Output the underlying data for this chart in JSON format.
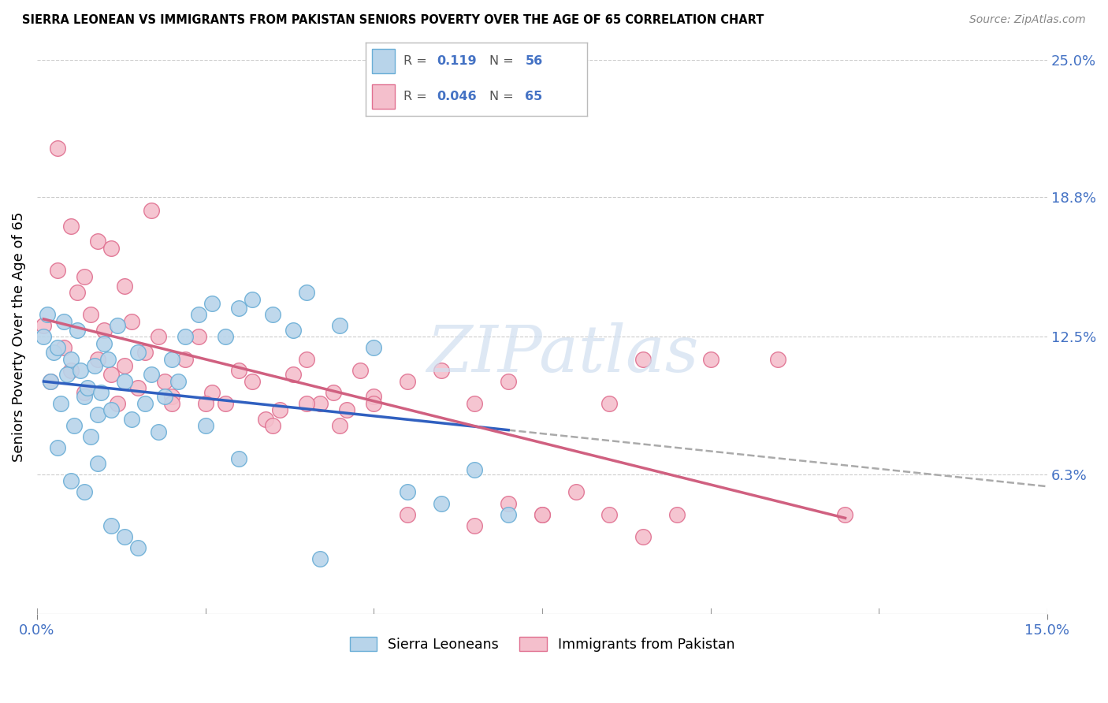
{
  "title": "SIERRA LEONEAN VS IMMIGRANTS FROM PAKISTAN SENIORS POVERTY OVER THE AGE OF 65 CORRELATION CHART",
  "source": "Source: ZipAtlas.com",
  "ylabel": "Seniors Poverty Over the Age of 65",
  "xlim": [
    0.0,
    15.0
  ],
  "ylim": [
    0.0,
    25.0
  ],
  "x_tick_labels": [
    "0.0%",
    "15.0%"
  ],
  "y_ticks_right": [
    6.3,
    12.5,
    18.8,
    25.0
  ],
  "y_tick_labels_right": [
    "6.3%",
    "12.5%",
    "18.8%",
    "25.0%"
  ],
  "series1_label": "Sierra Leoneans",
  "series1_color": "#b8d4ea",
  "series1_edge_color": "#6aaed6",
  "series1_R": "0.119",
  "series1_N": "56",
  "series2_label": "Immigrants from Pakistan",
  "series2_color": "#f4bfcc",
  "series2_edge_color": "#e07090",
  "series2_R": "0.046",
  "series2_N": "65",
  "trendline1_color": "#3060c0",
  "trendline2_color": "#d06080",
  "dashed_color": "#aaaaaa",
  "background_color": "#ffffff",
  "grid_color": "#cccccc",
  "series1_x": [
    0.1,
    0.15,
    0.2,
    0.25,
    0.3,
    0.35,
    0.4,
    0.45,
    0.5,
    0.55,
    0.6,
    0.65,
    0.7,
    0.75,
    0.8,
    0.85,
    0.9,
    0.95,
    1.0,
    1.05,
    1.1,
    1.2,
    1.3,
    1.4,
    1.5,
    1.6,
    1.7,
    1.8,
    1.9,
    2.0,
    2.1,
    2.2,
    2.4,
    2.6,
    2.8,
    3.0,
    3.2,
    3.5,
    3.8,
    4.0,
    4.5,
    5.0,
    5.5,
    6.0,
    6.5,
    7.0,
    0.3,
    0.5,
    0.7,
    0.9,
    1.1,
    1.3,
    1.5,
    2.5,
    3.0,
    4.2
  ],
  "series1_y": [
    12.5,
    13.5,
    10.5,
    11.8,
    12.0,
    9.5,
    13.2,
    10.8,
    11.5,
    8.5,
    12.8,
    11.0,
    9.8,
    10.2,
    8.0,
    11.2,
    9.0,
    10.0,
    12.2,
    11.5,
    9.2,
    13.0,
    10.5,
    8.8,
    11.8,
    9.5,
    10.8,
    8.2,
    9.8,
    11.5,
    10.5,
    12.5,
    13.5,
    14.0,
    12.5,
    13.8,
    14.2,
    13.5,
    12.8,
    14.5,
    13.0,
    12.0,
    5.5,
    5.0,
    6.5,
    4.5,
    7.5,
    6.0,
    5.5,
    6.8,
    4.0,
    3.5,
    3.0,
    8.5,
    7.0,
    2.5
  ],
  "series2_x": [
    0.1,
    0.2,
    0.3,
    0.4,
    0.5,
    0.6,
    0.7,
    0.8,
    0.9,
    1.0,
    1.1,
    1.2,
    1.3,
    1.4,
    1.5,
    1.6,
    1.7,
    1.8,
    1.9,
    2.0,
    2.2,
    2.4,
    2.6,
    2.8,
    3.0,
    3.2,
    3.4,
    3.6,
    3.8,
    4.0,
    4.2,
    4.4,
    4.6,
    4.8,
    5.0,
    5.5,
    6.0,
    6.5,
    7.0,
    7.5,
    8.0,
    8.5,
    9.0,
    9.5,
    10.0,
    0.3,
    0.5,
    0.7,
    0.9,
    1.1,
    1.3,
    2.0,
    2.5,
    3.5,
    4.5,
    5.5,
    6.5,
    7.5,
    9.0,
    11.0,
    12.0,
    7.0,
    8.5,
    5.0,
    4.0
  ],
  "series2_y": [
    13.0,
    10.5,
    15.5,
    12.0,
    11.0,
    14.5,
    10.0,
    13.5,
    11.5,
    12.8,
    10.8,
    9.5,
    11.2,
    13.2,
    10.2,
    11.8,
    18.2,
    12.5,
    10.5,
    9.8,
    11.5,
    12.5,
    10.0,
    9.5,
    11.0,
    10.5,
    8.8,
    9.2,
    10.8,
    11.5,
    9.5,
    10.0,
    9.2,
    11.0,
    9.8,
    10.5,
    11.0,
    9.5,
    5.0,
    4.5,
    5.5,
    9.5,
    11.5,
    4.5,
    11.5,
    21.0,
    17.5,
    15.2,
    16.8,
    16.5,
    14.8,
    9.5,
    9.5,
    8.5,
    8.5,
    4.5,
    4.0,
    4.5,
    3.5,
    11.5,
    4.5,
    10.5,
    4.5,
    9.5,
    9.5
  ]
}
